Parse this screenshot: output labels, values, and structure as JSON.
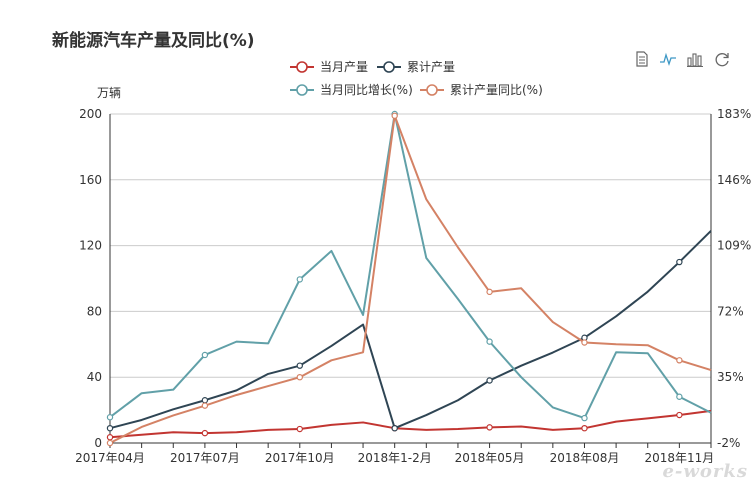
{
  "header": {
    "title": "新能源汽车产量及同比(%)"
  },
  "toolbar": {
    "items": [
      {
        "name": "data-view-icon"
      },
      {
        "name": "line-chart-icon"
      },
      {
        "name": "bar-chart-icon"
      },
      {
        "name": "restore-icon"
      }
    ]
  },
  "watermark": "e-works",
  "colors": {
    "monthly": "#c23531",
    "cumulative": "#2f4554",
    "monthly_yoy": "#61a0a8",
    "cumulative_yoy": "#d48265",
    "grid": "#cccccc",
    "axis": "#333333"
  },
  "chart_data": {
    "type": "line",
    "title": "新能源汽车产量及同比(%)",
    "y_left_label": "万辆",
    "y_left_lim": [
      0,
      200
    ],
    "y_left_ticks": [
      "0",
      "40",
      "80",
      "120",
      "160",
      "200"
    ],
    "y_right_lim": [
      -2,
      183
    ],
    "y_right_ticks": [
      "-2%",
      "35%",
      "72%",
      "109%",
      "146%",
      "183%"
    ],
    "x_tick_labels": [
      "2017年04月",
      "2017年07月",
      "2017年10月",
      "2018年1-2月",
      "2018年05月",
      "2018年08月",
      "2018年11月"
    ],
    "x": [
      "2017年04月",
      "2017年05月",
      "2017年06月",
      "2017年07月",
      "2017年08月",
      "2017年09月",
      "2017年10月",
      "2017年11月",
      "2017年12月",
      "2018年1-2月",
      "2018年03月",
      "2018年04月",
      "2018年05月",
      "2018年06月",
      "2018年07月",
      "2018年08月",
      "2018年09月",
      "2018年10月",
      "2018年11月",
      "2018年12月"
    ],
    "legend_position": "top-center",
    "grid": true,
    "series": [
      {
        "name": "当月产量",
        "axis": "left",
        "color": "#c23531",
        "values": [
          3.5,
          5,
          6.5,
          6,
          6.5,
          8,
          8.5,
          11,
          12.5,
          9,
          8,
          8.5,
          9.5,
          10,
          8,
          9,
          13,
          15,
          17,
          19.5
        ]
      },
      {
        "name": "累计产量",
        "axis": "left",
        "color": "#2f4554",
        "values": [
          9,
          14,
          20.5,
          26,
          32,
          42,
          47,
          59,
          72,
          9,
          17,
          26,
          38,
          47,
          55,
          64,
          77,
          92,
          110,
          129
        ]
      },
      {
        "name": "当月同比增长(%)",
        "axis": "right",
        "color": "#61a0a8",
        "values": [
          12.5,
          26,
          28,
          47.5,
          55,
          54,
          90,
          106,
          70,
          183,
          102,
          79,
          55,
          35,
          18,
          12,
          49,
          48.5,
          24,
          15
        ]
      },
      {
        "name": "累计产量同比(%)",
        "axis": "right",
        "color": "#d48265",
        "values": [
          -2,
          7,
          13.5,
          19,
          25,
          30,
          35,
          44.5,
          49,
          182,
          135,
          108,
          83,
          85,
          66,
          54.5,
          53.5,
          53,
          44.5,
          39
        ]
      }
    ]
  }
}
